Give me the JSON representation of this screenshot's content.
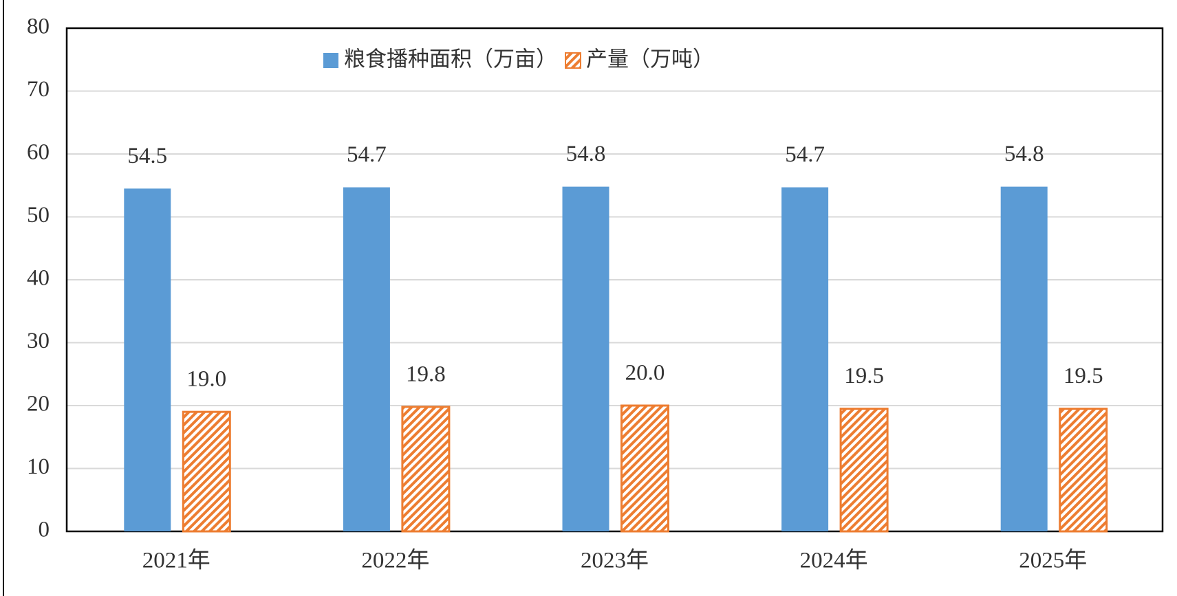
{
  "chart_data": {
    "type": "bar",
    "categories": [
      "2021年",
      "2022年",
      "2023年",
      "2024年",
      "2025年"
    ],
    "series": [
      {
        "name": "粮食播种面积（万亩）",
        "color": "#5b9bd5",
        "values": [
          54.5,
          54.7,
          54.8,
          54.7,
          54.8
        ],
        "value_labels": [
          "54.5",
          "54.7",
          "54.8",
          "54.7",
          "54.8"
        ]
      },
      {
        "name": "产量（万吨）",
        "color": "#ed7d31",
        "values": [
          19.0,
          19.8,
          20.0,
          19.5,
          19.5
        ],
        "value_labels": [
          "19.0",
          "19.8",
          "20.0",
          "19.5",
          "19.5"
        ]
      }
    ],
    "ylim": [
      0,
      80
    ],
    "yticks": [
      0,
      10,
      20,
      30,
      40,
      50,
      60,
      70,
      80
    ],
    "grid": true,
    "legend": "top"
  }
}
